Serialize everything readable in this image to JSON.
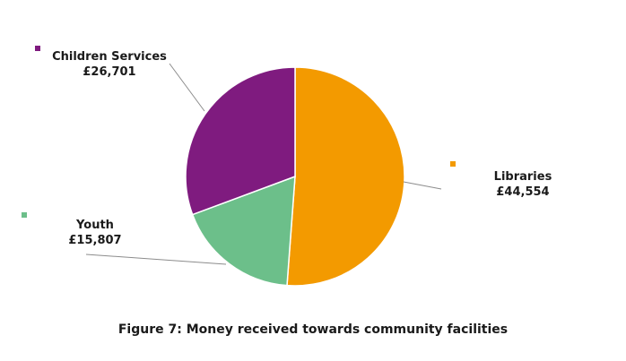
{
  "chart_data": {
    "type": "pie",
    "title": "Figure 7: Money received towards community facilities",
    "legend_placement": "outside-labels",
    "slices": [
      {
        "label": "Libraries",
        "value_text": "£44,554",
        "value": 44554,
        "color": "#F39A00"
      },
      {
        "label": "Youth",
        "value_text": "£15,807",
        "value": 15807,
        "color": "#6CBF8A"
      },
      {
        "label": "Children Services",
        "value_text": "£26,701",
        "value": 26701,
        "color": "#7F1B7F"
      }
    ]
  }
}
